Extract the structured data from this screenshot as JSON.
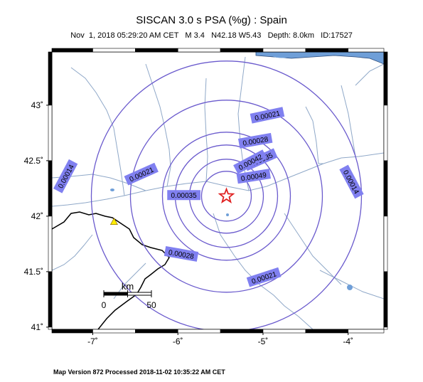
{
  "header": {
    "title": "SISCAN 3.0 s PSA (%g) : Spain",
    "subtitle": "Nov  1, 2018 05:29:20 AM CET   M 3.4   N42.18 W5.43   Depth: 8.0km   ID:17527"
  },
  "footer": {
    "text": "Map Version 872 Processed 2018-11-02 10:35:22 AM CET"
  },
  "axes": {
    "lon_ticks": [
      {
        "value": -7,
        "label": "-7˚"
      },
      {
        "value": -6,
        "label": "-6˚"
      },
      {
        "value": -5,
        "label": "-5˚"
      },
      {
        "value": -4,
        "label": "-4˚"
      }
    ],
    "lat_ticks": [
      {
        "value": 43,
        "label": "43˚"
      },
      {
        "value": 42.5,
        "label": "42.5˚"
      },
      {
        "value": 42,
        "label": "42˚"
      },
      {
        "value": 41.5,
        "label": "41.5˚"
      },
      {
        "value": 41,
        "label": "41˚"
      }
    ]
  },
  "scale_bar": {
    "unit": "km",
    "start_label": "0",
    "end_label": "50"
  },
  "contour_labels": [
    {
      "text": "0.00021",
      "lon": -4.95,
      "lat": 42.91,
      "angle": -12
    },
    {
      "text": "0.00028",
      "lon": -5.09,
      "lat": 42.68,
      "angle": -10
    },
    {
      "text": "0.00035",
      "lon": -5.03,
      "lat": 42.51,
      "angle": -24
    },
    {
      "text": "0.00042",
      "lon": -5.15,
      "lat": 42.49,
      "angle": -28
    },
    {
      "text": "0.00049",
      "lon": -5.11,
      "lat": 42.36,
      "angle": -9
    },
    {
      "text": "0.00035",
      "lon": -5.93,
      "lat": 42.19,
      "angle": 0
    },
    {
      "text": "0.00021",
      "lon": -6.43,
      "lat": 42.38,
      "angle": -24
    },
    {
      "text": "0.00014",
      "lon": -7.32,
      "lat": 42.36,
      "angle": -62
    },
    {
      "text": "0.00014",
      "lon": -3.96,
      "lat": 42.31,
      "angle": 62
    },
    {
      "text": "0.00028",
      "lon": -5.96,
      "lat": 41.66,
      "angle": 10
    },
    {
      "text": "0.00021",
      "lon": -4.99,
      "lat": 41.45,
      "angle": -18
    }
  ],
  "epicenter": {
    "lat": 42.18,
    "lon": -5.43,
    "color": "#e02020"
  },
  "station": {
    "lat": 41.95,
    "lon": -6.75,
    "color": "#ffee00"
  },
  "colors": {
    "contour": "#6a5acd",
    "label_bg": "#8080f0",
    "river": "#8fa8c8",
    "water": "#6f9fd8",
    "border": "#000000"
  }
}
